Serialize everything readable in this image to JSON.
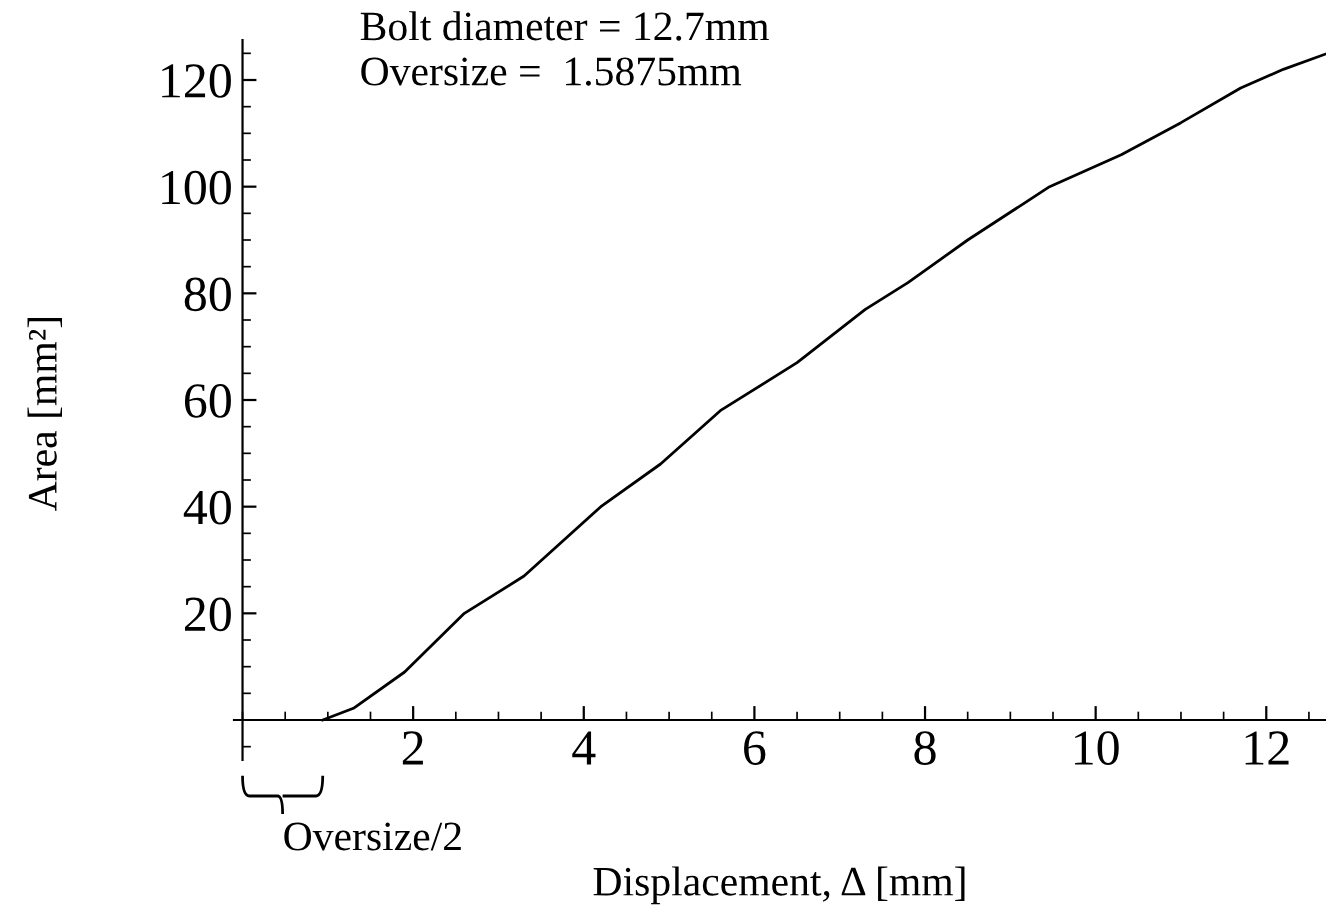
{
  "chart_data": {
    "type": "line",
    "xlabel": "Displacement, Δ [mm]",
    "ylabel": "Area [mm²]",
    "x": [
      0.94,
      1.3,
      1.9,
      2.6,
      3.3,
      4.2,
      4.9,
      5.6,
      6.5,
      7.3,
      7.8,
      8.5,
      9.46,
      10.3,
      11,
      11.7,
      12.2,
      12.7
    ],
    "series": [
      {
        "color": "#000000",
        "values": [
          0,
          2.2,
          9,
          20,
          27,
          40,
          48,
          58,
          67,
          77,
          82,
          90,
          100,
          106,
          112,
          118.5,
          122,
          124.9
        ]
      }
    ],
    "xlim": [
      -0.1,
      12.7
    ],
    "ylim": [
      -7.5,
      127.5
    ],
    "xticks": [
      2,
      4,
      6,
      8,
      10,
      12
    ],
    "yticks": [
      20,
      40,
      60,
      80,
      100,
      120
    ],
    "grid": false,
    "legend": false,
    "marker": "none",
    "line_style": "solid",
    "annotations": [
      "Bolt diameter = 12.7mm\nOversize =  1.5875mm",
      "Oversize/2"
    ]
  }
}
